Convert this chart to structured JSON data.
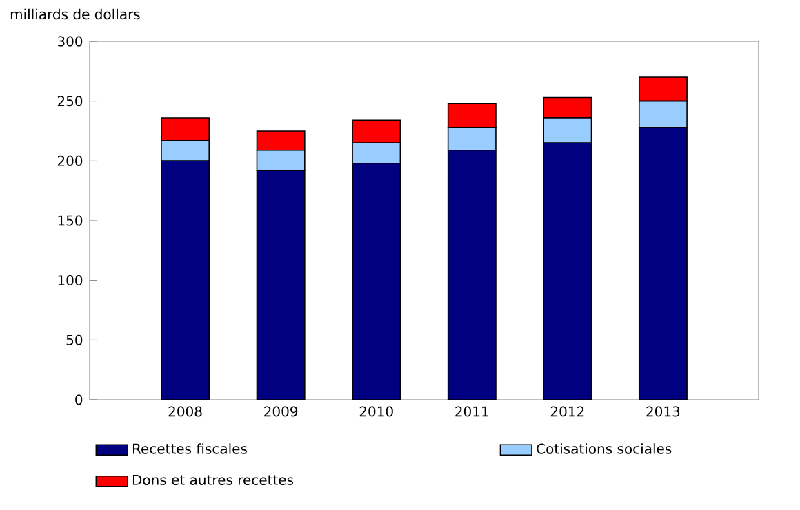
{
  "chart_data": {
    "type": "bar",
    "stacked": true,
    "ylabel": "milliards de dollars",
    "categories": [
      "2008",
      "2009",
      "2010",
      "2011",
      "2012",
      "2013"
    ],
    "series": [
      {
        "name": "Recettes fiscales",
        "color": "#000080",
        "values": [
          200,
          192,
          198,
          209,
          215,
          228
        ]
      },
      {
        "name": "Cotisations sociales",
        "color": "#99ccff",
        "values": [
          17,
          17,
          17,
          19,
          21,
          22
        ]
      },
      {
        "name": "Dons et autres recettes",
        "color": "#ff0000",
        "values": [
          19,
          16,
          19,
          20,
          17,
          20
        ]
      }
    ],
    "ylim": [
      0,
      300
    ],
    "yticks": [
      0,
      50,
      100,
      150,
      200,
      250,
      300
    ],
    "grid": false,
    "legend": "bottom"
  }
}
